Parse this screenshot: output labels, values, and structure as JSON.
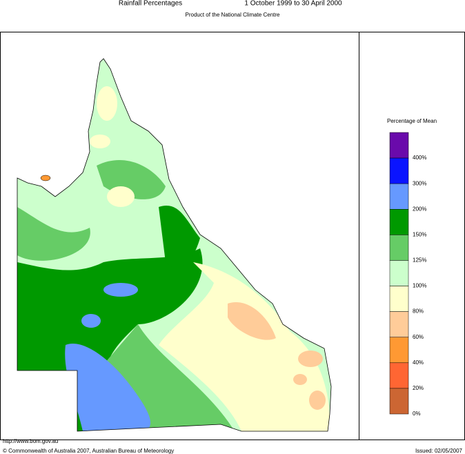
{
  "header": {
    "title": "Rainfall Percentages",
    "period": "1 October 1999 to 30 April 2000",
    "subtitle": "Product of the National Climate Centre"
  },
  "legend": {
    "title": "Percentage of Mean",
    "colors": [
      "#6a0aab",
      "#0a14ff",
      "#6699ff",
      "#009900",
      "#66cc66",
      "#ccffcc",
      "#ffffcc",
      "#ffcc99",
      "#ff9933",
      "#ff6633",
      "#cc6633"
    ],
    "labels": [
      "400%",
      "300%",
      "200%",
      "150%",
      "125%",
      "100%",
      "80%",
      "60%",
      "40%",
      "20%",
      "0%"
    ]
  },
  "footer": {
    "url": "http://www.bom.gov.au",
    "copyright": "© Commonwealth of Australia 2007, Australian Bureau of Meteorology",
    "issued": "Issued: 02/05/2007"
  }
}
